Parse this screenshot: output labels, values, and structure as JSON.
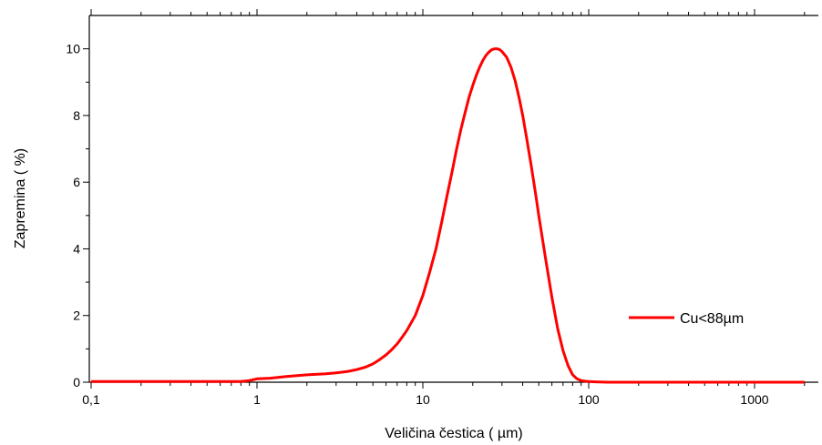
{
  "chart_data": {
    "type": "line",
    "title": "",
    "xlabel": "Veličina čestica ( µm)",
    "ylabel": "Zapremina ( %)",
    "x_scale": "log",
    "xlim": [
      0.1,
      2500
    ],
    "ylim": [
      0,
      11
    ],
    "x_ticks": [
      0.1,
      1,
      10,
      100,
      1000
    ],
    "x_tick_labels": [
      "0,1",
      "1",
      "10",
      "100",
      "1000"
    ],
    "y_ticks": [
      0,
      2,
      4,
      6,
      8,
      10
    ],
    "y_tick_labels": [
      "0",
      "2",
      "4",
      "6",
      "8",
      "10"
    ],
    "grid": false,
    "legend_position": "right",
    "series": [
      {
        "name": "Cu<88µm",
        "color": "#ff0000",
        "x": [
          0.1,
          0.3,
          0.6,
          0.8,
          0.9,
          1.0,
          1.2,
          1.5,
          2.0,
          2.6,
          3.0,
          3.5,
          4.0,
          4.5,
          5.0,
          5.5,
          6.0,
          6.5,
          7.0,
          7.5,
          8.0,
          9.0,
          10.0,
          11.0,
          12.0,
          13.0,
          14.0,
          15.0,
          16.0,
          17.0,
          18.0,
          19.0,
          20.0,
          21.0,
          22.0,
          23.0,
          24.0,
          25.0,
          26.0,
          27.0,
          28.0,
          29.0,
          30.0,
          32.0,
          34.0,
          36.0,
          38.0,
          40.0,
          42.0,
          45.0,
          48.0,
          50.0,
          55.0,
          60.0,
          65.0,
          70.0,
          75.0,
          80.0,
          85.0,
          90.0,
          95.0,
          100.0,
          110.0,
          130.0,
          200.0,
          500.0,
          1000.0,
          2000.0
        ],
        "values": [
          0.02,
          0.02,
          0.02,
          0.02,
          0.05,
          0.1,
          0.12,
          0.17,
          0.22,
          0.25,
          0.28,
          0.32,
          0.38,
          0.45,
          0.55,
          0.68,
          0.82,
          0.98,
          1.15,
          1.35,
          1.55,
          2.0,
          2.6,
          3.3,
          4.0,
          4.8,
          5.6,
          6.3,
          7.0,
          7.6,
          8.1,
          8.55,
          8.9,
          9.2,
          9.45,
          9.65,
          9.8,
          9.9,
          9.97,
          10.0,
          10.0,
          9.98,
          9.92,
          9.75,
          9.45,
          9.05,
          8.55,
          8.0,
          7.4,
          6.5,
          5.6,
          5.0,
          3.7,
          2.55,
          1.6,
          0.95,
          0.5,
          0.22,
          0.1,
          0.05,
          0.03,
          0.02,
          0.01,
          0.0,
          0.0,
          0.0,
          0.0,
          0.0
        ]
      }
    ]
  }
}
